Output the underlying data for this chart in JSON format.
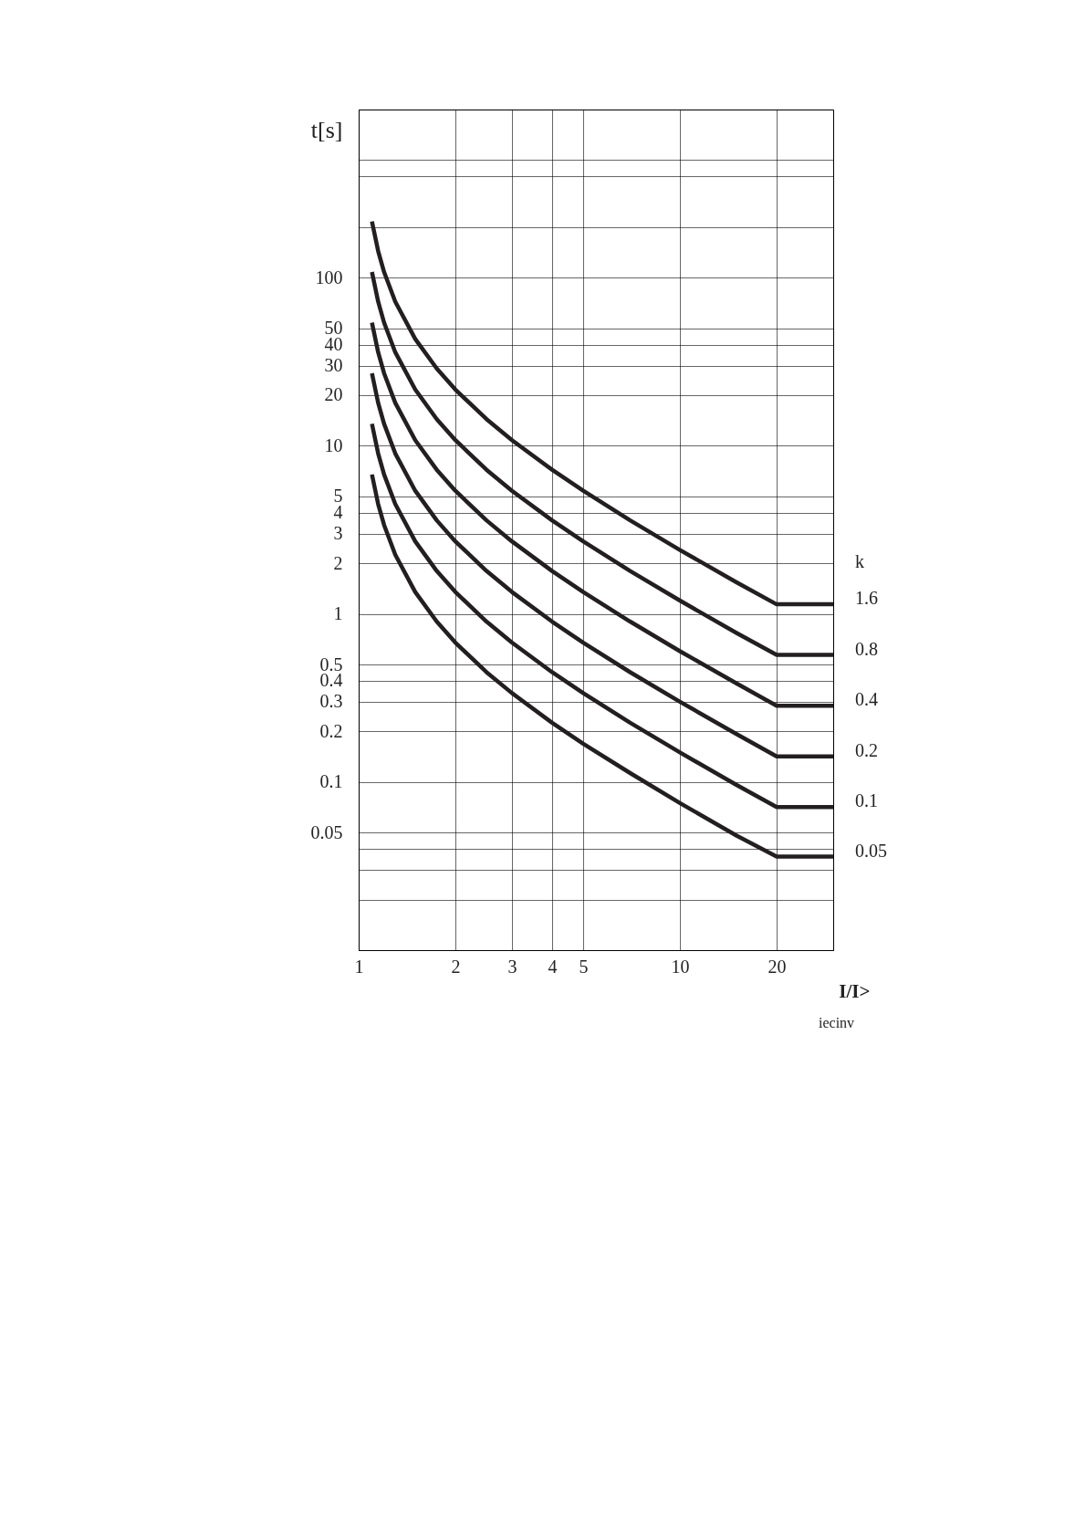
{
  "chart_data": {
    "type": "line",
    "xlabel": "I/I>",
    "ylabel": "t[s]",
    "legend_title": "k",
    "annotations": [
      "iecinv"
    ],
    "log": "xy",
    "grid": true,
    "legend": "right",
    "marker": "none",
    "line_style": "solid",
    "x": [
      1.1,
      1.15,
      1.2,
      1.3,
      1.5,
      1.75,
      2,
      2.5,
      3,
      4,
      5,
      7,
      10,
      15,
      20,
      30
    ],
    "xlim": [
      1,
      30
    ],
    "xticks": [
      1,
      2,
      3,
      4,
      5,
      10,
      20,
      {
        "value": 30,
        "label": null
      }
    ],
    "ylim": [
      0.01,
      1000
    ],
    "yticks": [
      {
        "value": 0.02,
        "label": null
      },
      {
        "value": 0.03,
        "label": null
      },
      {
        "value": 0.04,
        "label": null
      },
      0.05,
      0.1,
      0.2,
      0.3,
      0.4,
      0.5,
      1,
      2,
      3,
      4,
      5,
      10,
      20,
      30,
      40,
      50,
      100,
      {
        "value": 200,
        "label": null
      },
      {
        "value": 400,
        "label": null
      },
      {
        "value": 500,
        "label": null
      }
    ],
    "series": [
      {
        "name": "1.6",
        "color": "#231f20",
        "values": [
          216,
          144,
          108,
          72,
          43.2,
          28.8,
          21.6,
          14.4,
          10.8,
          7.2,
          5.4,
          3.6,
          2.4,
          1.54,
          1.14,
          1.14
        ]
      },
      {
        "name": "0.8",
        "color": "#231f20",
        "values": [
          108,
          72,
          54,
          36,
          21.6,
          14.4,
          10.8,
          7.2,
          5.4,
          3.6,
          2.7,
          1.8,
          1.2,
          0.77,
          0.57,
          0.57
        ]
      },
      {
        "name": "0.4",
        "color": "#231f20",
        "values": [
          54,
          36,
          27,
          18,
          10.8,
          7.2,
          5.4,
          3.6,
          2.7,
          1.8,
          1.35,
          0.9,
          0.6,
          0.386,
          0.284,
          0.284
        ]
      },
      {
        "name": "0.2",
        "color": "#231f20",
        "values": [
          27,
          18,
          13.5,
          9,
          5.4,
          3.6,
          2.7,
          1.8,
          1.35,
          0.9,
          0.675,
          0.45,
          0.3,
          0.193,
          0.142,
          0.142
        ]
      },
      {
        "name": "0.1",
        "color": "#231f20",
        "values": [
          13.5,
          9,
          6.75,
          4.5,
          2.7,
          1.8,
          1.35,
          0.9,
          0.675,
          0.45,
          0.338,
          0.225,
          0.15,
          0.096,
          0.071,
          0.071
        ]
      },
      {
        "name": "0.05",
        "color": "#231f20",
        "values": [
          6.75,
          4.5,
          3.38,
          2.25,
          1.35,
          0.9,
          0.675,
          0.45,
          0.338,
          0.225,
          0.169,
          0.113,
          0.075,
          0.048,
          0.036,
          0.036
        ]
      }
    ]
  }
}
